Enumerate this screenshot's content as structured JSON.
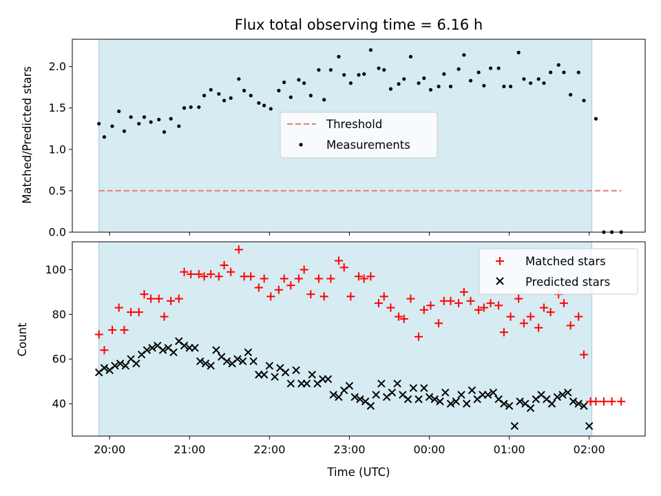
{
  "chart_data": [
    {
      "type": "scatter",
      "title": "Flux total observing time = 6.16 h",
      "xlabel": "",
      "ylabel": "Matched/Predicted stars",
      "xlim": [
        -20,
        410
      ],
      "ylim": [
        0,
        2.33
      ],
      "yticks": [
        0.0,
        0.5,
        1.0,
        1.5,
        2.0
      ],
      "ytick_labels": [
        "0.0",
        "0.5",
        "1.0",
        "1.5",
        "2.0"
      ],
      "observing_window_min": [
        0,
        370
      ],
      "legend_position": "center",
      "threshold": {
        "name": "Threshold",
        "value": 0.5,
        "x_range": [
          0,
          392
        ],
        "color": "#f07a7a"
      },
      "series": [
        {
          "name": "Measurements",
          "color": "#000000",
          "x": [
            0,
            4,
            10,
            15,
            19,
            24,
            30,
            34,
            39,
            45,
            49,
            54,
            60,
            64,
            69,
            75,
            79,
            84,
            90,
            94,
            99,
            105,
            109,
            114,
            120,
            124,
            129,
            135,
            139,
            144,
            150,
            154,
            159,
            165,
            169,
            174,
            180,
            184,
            189,
            195,
            199,
            204,
            210,
            214,
            219,
            225,
            229,
            234,
            240,
            244,
            249,
            255,
            259,
            264,
            270,
            274,
            279,
            285,
            289,
            294,
            300,
            304,
            309,
            315,
            319,
            324,
            330,
            334,
            339,
            345,
            349,
            354,
            360,
            364,
            373,
            379,
            385,
            392
          ],
          "y": [
            1.31,
            1.15,
            1.28,
            1.46,
            1.22,
            1.39,
            1.31,
            1.39,
            1.33,
            1.36,
            1.21,
            1.37,
            1.28,
            1.5,
            1.51,
            1.51,
            1.65,
            1.72,
            1.67,
            1.59,
            1.62,
            1.85,
            1.71,
            1.65,
            1.56,
            1.53,
            1.49,
            1.71,
            1.81,
            1.63,
            1.84,
            1.8,
            1.65,
            1.96,
            1.6,
            1.96,
            2.12,
            1.9,
            1.8,
            1.9,
            1.91,
            2.2,
            1.98,
            1.96,
            1.73,
            1.79,
            1.85,
            2.12,
            1.8,
            1.86,
            1.72,
            1.76,
            1.91,
            1.76,
            1.97,
            2.14,
            1.83,
            1.93,
            1.77,
            1.98,
            1.98,
            1.76,
            1.76,
            2.17,
            1.85,
            1.8,
            1.85,
            1.8,
            1.93,
            2.02,
            1.93,
            1.66,
            1.93,
            1.59,
            1.37,
            0.0,
            0.0,
            0.0
          ]
        }
      ]
    },
    {
      "type": "scatter",
      "title": "",
      "xlabel": "Time (UTC)",
      "ylabel": "Count",
      "xlim": [
        -20,
        410
      ],
      "ylim": [
        25.5,
        112.5
      ],
      "yticks": [
        40,
        60,
        80,
        100
      ],
      "ytick_labels": [
        "40",
        "60",
        "80",
        "100"
      ],
      "xticks_min": [
        8,
        68,
        128,
        188,
        248,
        308,
        368
      ],
      "xtick_labels": [
        "20:00",
        "21:00",
        "22:00",
        "23:00",
        "00:00",
        "01:00",
        "02:00"
      ],
      "observing_window_min": [
        0,
        370
      ],
      "legend_position": "upper right",
      "series": [
        {
          "name": "Matched stars",
          "marker": "plus",
          "color": "#ff0000",
          "x": [
            0,
            4,
            10,
            15,
            19,
            24,
            30,
            34,
            39,
            45,
            49,
            54,
            60,
            64,
            69,
            75,
            79,
            84,
            90,
            94,
            99,
            105,
            109,
            114,
            120,
            124,
            129,
            135,
            139,
            144,
            150,
            154,
            159,
            165,
            169,
            174,
            180,
            184,
            189,
            195,
            199,
            204,
            210,
            214,
            219,
            225,
            229,
            234,
            240,
            244,
            249,
            255,
            259,
            264,
            270,
            274,
            279,
            285,
            289,
            294,
            300,
            304,
            309,
            315,
            319,
            324,
            330,
            334,
            339,
            345,
            349,
            354,
            360,
            364,
            369,
            373,
            379,
            385,
            392
          ],
          "y": [
            71,
            64,
            73,
            83,
            73,
            81,
            81,
            89,
            87,
            87,
            79,
            86,
            87,
            99,
            98,
            98,
            97,
            98,
            97,
            102,
            99,
            109,
            97,
            97,
            92,
            96,
            88,
            91,
            96,
            93,
            96,
            100,
            89,
            96,
            88,
            96,
            104,
            101,
            88,
            97,
            96,
            97,
            85,
            88,
            83,
            79,
            78,
            87,
            70,
            82,
            84,
            76,
            86,
            86,
            85,
            90,
            86,
            82,
            83,
            85,
            84,
            72,
            79,
            87,
            76,
            79,
            74,
            83,
            81,
            89,
            85,
            75,
            79,
            62,
            41,
            41,
            41,
            41,
            41
          ]
        },
        {
          "name": "Predicted stars",
          "marker": "x",
          "color": "#000000",
          "x": [
            0,
            4,
            8,
            12,
            16,
            20,
            24,
            28,
            32,
            36,
            40,
            44,
            48,
            52,
            56,
            60,
            64,
            68,
            72,
            76,
            80,
            84,
            88,
            92,
            96,
            100,
            104,
            108,
            112,
            116,
            120,
            124,
            128,
            132,
            136,
            140,
            144,
            148,
            152,
            156,
            160,
            164,
            168,
            172,
            176,
            180,
            184,
            188,
            192,
            196,
            200,
            204,
            208,
            212,
            216,
            220,
            224,
            228,
            232,
            236,
            240,
            244,
            248,
            252,
            256,
            260,
            264,
            268,
            272,
            276,
            280,
            284,
            288,
            292,
            296,
            300,
            304,
            308,
            312,
            316,
            320,
            324,
            328,
            332,
            336,
            340,
            344,
            348,
            352,
            356,
            360,
            364,
            368
          ],
          "y": [
            54,
            56,
            55,
            57,
            58,
            57,
            60,
            58,
            62,
            64,
            65,
            66,
            64,
            65,
            63,
            68,
            66,
            65,
            65,
            59,
            58,
            57,
            64,
            61,
            59,
            58,
            60,
            59,
            63,
            59,
            53,
            53,
            57,
            52,
            56,
            54,
            49,
            55,
            49,
            49,
            53,
            49,
            51,
            51,
            44,
            43,
            46,
            48,
            43,
            42,
            41,
            39,
            44,
            49,
            43,
            45,
            49,
            44,
            42,
            47,
            42,
            47,
            43,
            42,
            41,
            45,
            40,
            41,
            44,
            40,
            46,
            42,
            44,
            44,
            45,
            42,
            40,
            39,
            30,
            41,
            40,
            38,
            42,
            44,
            42,
            40,
            43,
            44,
            45,
            41,
            40,
            39,
            30
          ]
        }
      ]
    }
  ]
}
